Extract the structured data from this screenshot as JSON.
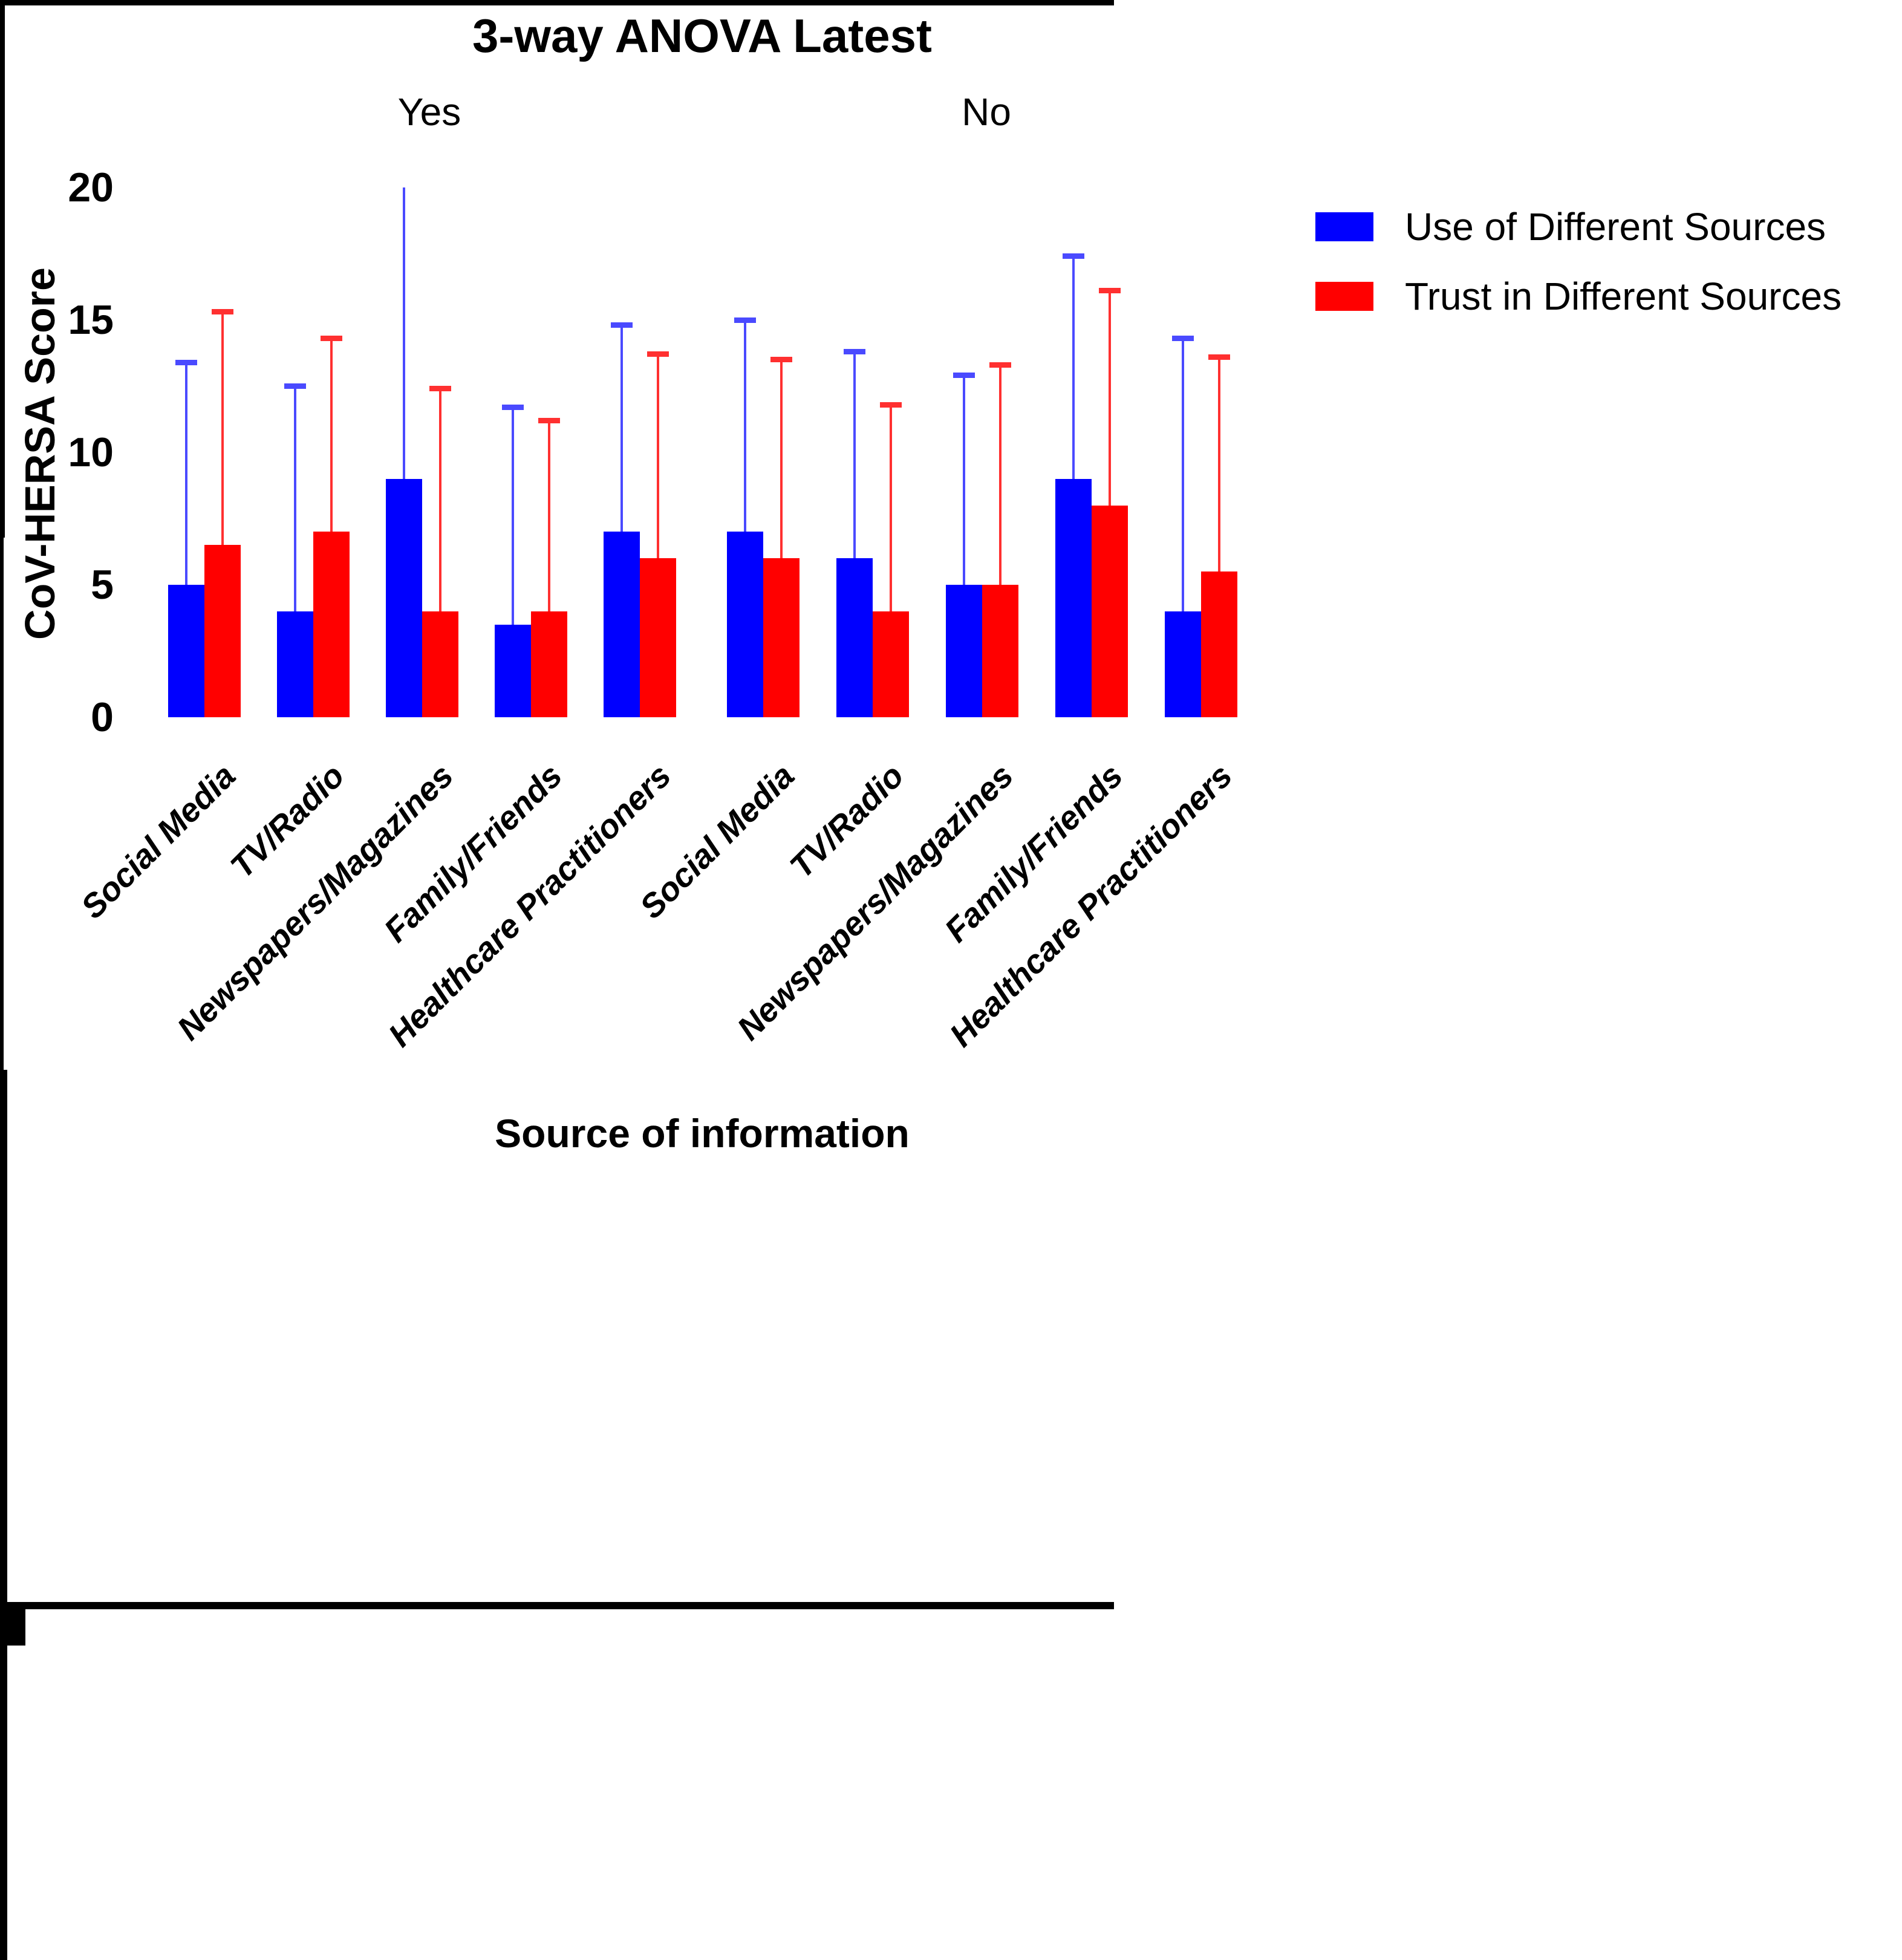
{
  "chart_data": {
    "type": "bar",
    "title": "3-way ANOVA Latest",
    "ylabel": "CoV-HERSA Score",
    "xlabel": "Source of information",
    "ylim": [
      0,
      20
    ],
    "yticks": [
      0,
      5,
      10,
      15,
      20
    ],
    "grid": false,
    "legend_position": "right-top",
    "categories": [
      "Social Media",
      "TV/Radio",
      "Newspapers/Magazines",
      "Family/Friends",
      "Healthcare Practitioners"
    ],
    "facets": [
      {
        "label": "Yes",
        "series": [
          {
            "name": "Use of Different Sources",
            "color": "#0000FF",
            "values": [
              5.0,
              4.0,
              9.0,
              3.5,
              7.0
            ],
            "error_top": [
              13.4,
              12.5,
              20.0,
              11.7,
              14.8
            ],
            "error_clipped": [
              false,
              false,
              true,
              false,
              false
            ]
          },
          {
            "name": "Trust in Different Sources",
            "color": "#FF0000",
            "values": [
              6.5,
              7.0,
              4.0,
              4.0,
              6.0
            ],
            "error_top": [
              15.3,
              14.3,
              12.4,
              11.2,
              13.7
            ],
            "error_clipped": [
              false,
              false,
              false,
              false,
              false
            ]
          }
        ]
      },
      {
        "label": "No",
        "series": [
          {
            "name": "Use of Different Sources",
            "color": "#0000FF",
            "values": [
              7.0,
              6.0,
              5.0,
              9.0,
              4.0
            ],
            "error_top": [
              15.0,
              13.8,
              12.9,
              17.4,
              14.3
            ],
            "error_clipped": [
              false,
              false,
              false,
              false,
              false
            ]
          },
          {
            "name": "Trust in Different Sources",
            "color": "#FF0000",
            "values": [
              6.0,
              4.0,
              5.0,
              8.0,
              5.5
            ],
            "error_top": [
              13.5,
              11.8,
              13.3,
              16.1,
              13.6
            ],
            "error_clipped": [
              false,
              false,
              false,
              false,
              false
            ]
          }
        ]
      }
    ],
    "legend": [
      {
        "label": "Use of Different Sources",
        "color": "#0000FF"
      },
      {
        "label": "Trust in Different Sources",
        "color": "#FF0000"
      }
    ],
    "colors": {
      "bar_blue": "#0000FF",
      "bar_red": "#FF0000",
      "error_blue": "#4A4AFF",
      "error_red": "#FF3030",
      "axis": "#000000"
    }
  }
}
